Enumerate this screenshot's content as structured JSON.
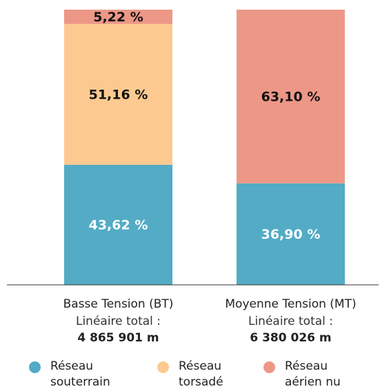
{
  "chart_data": {
    "type": "stacked-bar",
    "categories": [
      "Basse Tension (BT)",
      "Moyenne Tension (MT)"
    ],
    "category_notes": [
      "Linéaire total :",
      "Linéaire total :"
    ],
    "category_totals": [
      "4 865 901 m",
      "6 380 026 m"
    ],
    "ylim": [
      0,
      100
    ],
    "series": [
      {
        "name": "Réseau souterrain",
        "color": "#53abc5",
        "label_color": "#ffffff",
        "values": [
          43.62,
          36.9
        ],
        "value_labels": [
          "43,62 %",
          "36,90 %"
        ]
      },
      {
        "name": "Réseau torsadé",
        "color": "#fcca90",
        "label_color": "#111111",
        "values": [
          51.16,
          null
        ],
        "value_labels": [
          "51,16 %",
          null
        ]
      },
      {
        "name": "Réseau aérien nu",
        "color": "#ed9787",
        "label_color": "#111111",
        "values": [
          5.22,
          63.1
        ],
        "value_labels": [
          "5,22 %",
          "63,10 %"
        ]
      }
    ],
    "legend": "bottom"
  }
}
